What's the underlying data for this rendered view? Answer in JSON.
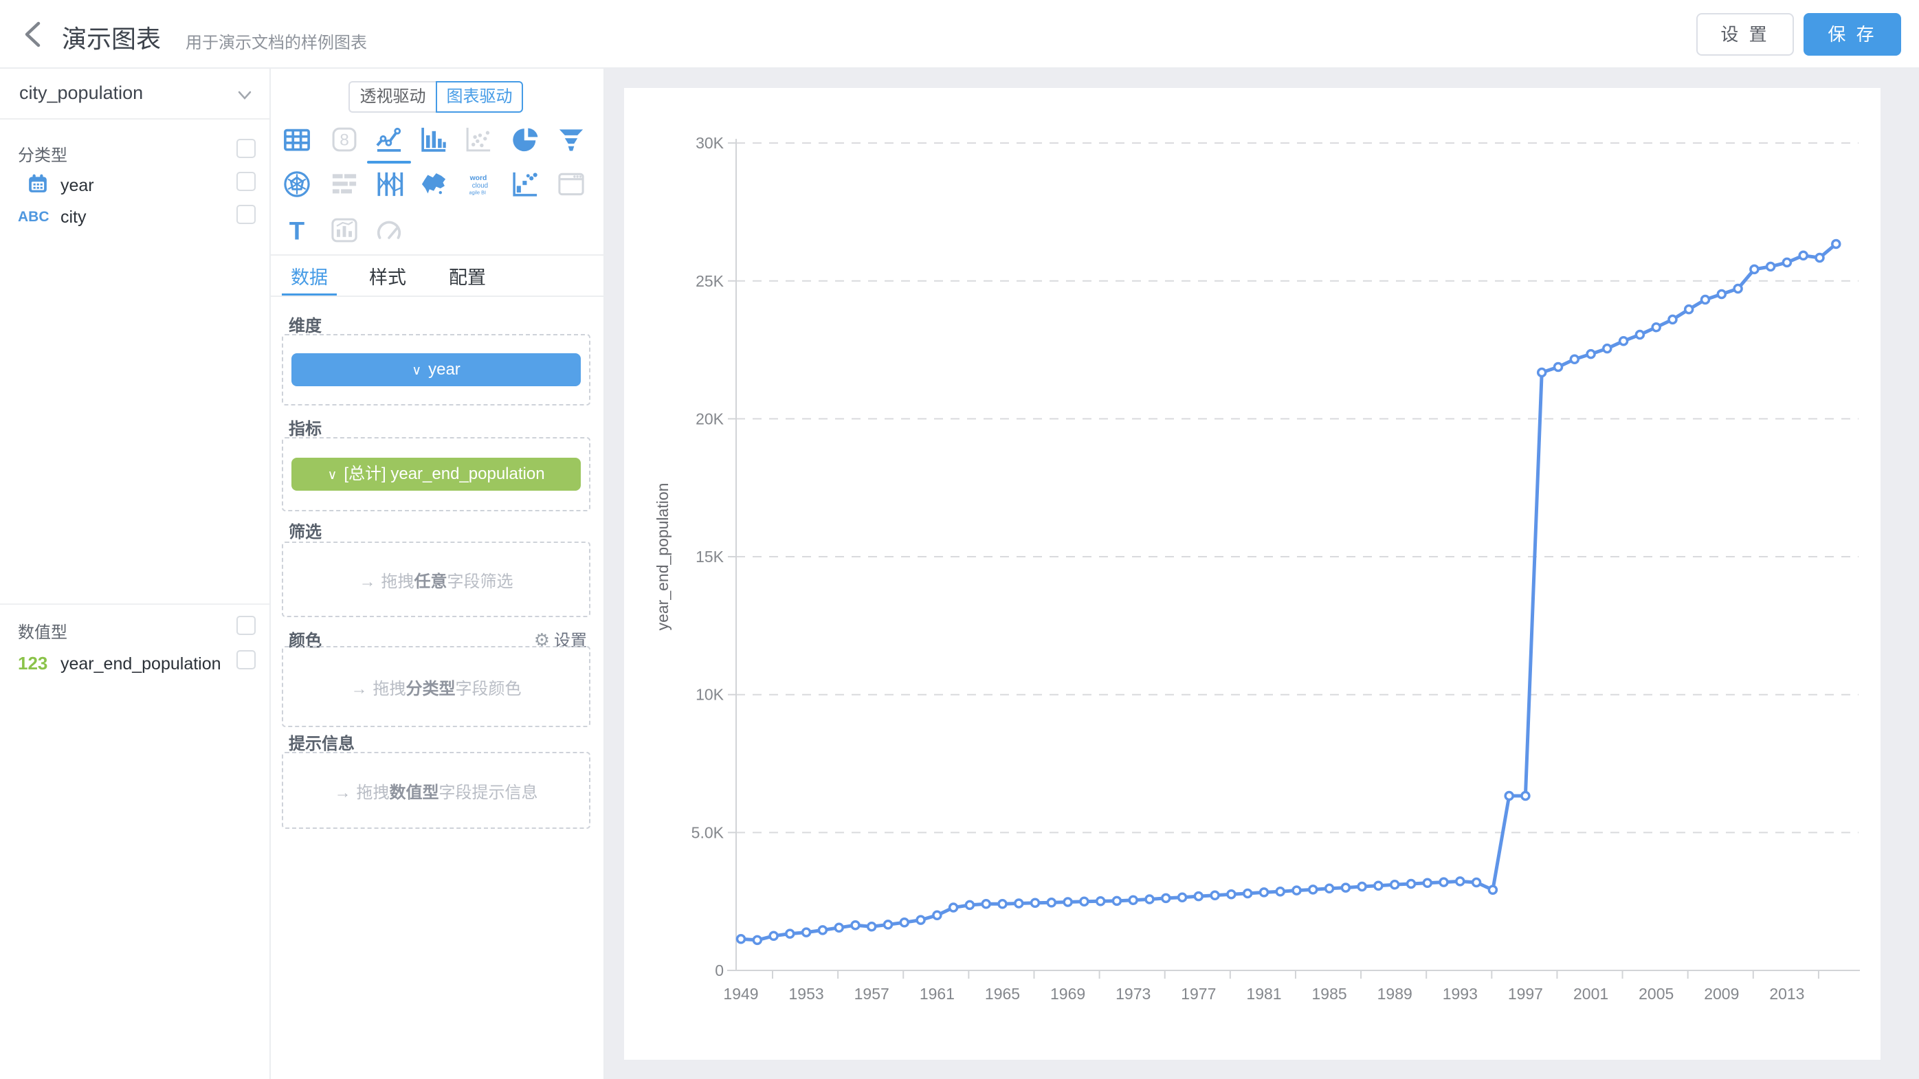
{
  "icons": {
    "chevron_down": "∨",
    "arrow_right": "→",
    "gear": "⚙"
  },
  "header": {
    "title": "演示图表",
    "subtitle": "用于演示文档的样例图表",
    "settings_label": "设 置",
    "save_label": "保 存"
  },
  "sidebar": {
    "dataset": "city_population",
    "category_section": {
      "label": "分类型",
      "fields": [
        {
          "name": "year",
          "icon": "calendar-icon"
        },
        {
          "name": "city",
          "icon": "abc-icon",
          "icon_text": "ABC"
        }
      ]
    },
    "numeric_section": {
      "label": "数值型",
      "fields": [
        {
          "name": "year_end_population",
          "icon": "numeric-123-icon",
          "icon_text": "123"
        }
      ]
    }
  },
  "panel": {
    "mode_toggle": {
      "options": [
        "透视驱动",
        "图表驱动"
      ],
      "active": 1
    },
    "chart_types": [
      {
        "name": "table",
        "state": "normal"
      },
      {
        "name": "indicator",
        "state": "disabled"
      },
      {
        "name": "line",
        "state": "selected"
      },
      {
        "name": "bar",
        "state": "normal"
      },
      {
        "name": "scatter",
        "state": "disabled"
      },
      {
        "name": "pie",
        "state": "normal"
      },
      {
        "name": "funnel",
        "state": "normal"
      },
      {
        "name": "radar",
        "state": "normal"
      },
      {
        "name": "gantt",
        "state": "disabled"
      },
      {
        "name": "parallel",
        "state": "normal"
      },
      {
        "name": "map",
        "state": "normal"
      },
      {
        "name": "word-cloud",
        "state": "normal"
      },
      {
        "name": "quadrant",
        "state": "normal"
      },
      {
        "name": "iframe",
        "state": "disabled"
      },
      {
        "name": "text",
        "state": "normal"
      },
      {
        "name": "mix",
        "state": "disabled"
      },
      {
        "name": "gauge",
        "state": "disabled"
      }
    ],
    "tabs": {
      "items": [
        "数据",
        "样式",
        "配置"
      ],
      "active": 0
    },
    "sections": {
      "dimension": {
        "label": "维度",
        "chip": "year",
        "chip_color": "#55A1E8"
      },
      "metric": {
        "label": "指标",
        "chip": "[总计] year_end_population",
        "chip_color": "#9CC65F"
      },
      "filter": {
        "label": "筛选",
        "parts": [
          "拖拽",
          "任意",
          "字段筛选"
        ]
      },
      "color": {
        "label": "颜色",
        "action": "设置",
        "parts": [
          "拖拽",
          "分类型",
          "字段颜色"
        ]
      },
      "tooltip": {
        "label": "提示信息",
        "parts": [
          "拖拽",
          "数值型",
          "字段提示信息"
        ]
      }
    }
  },
  "chart_data": {
    "type": "line",
    "title": "",
    "xlabel": "",
    "ylabel": "year_end_population",
    "ylim": [
      0,
      30000
    ],
    "grid": "horizontal-dashed",
    "legend_position": "none",
    "line_color": "#5E94E8",
    "x": [
      1949,
      1950,
      1951,
      1952,
      1953,
      1954,
      1955,
      1956,
      1957,
      1958,
      1959,
      1960,
      1961,
      1962,
      1963,
      1964,
      1965,
      1966,
      1967,
      1968,
      1969,
      1970,
      1971,
      1972,
      1973,
      1974,
      1975,
      1976,
      1977,
      1978,
      1979,
      1980,
      1981,
      1982,
      1983,
      1984,
      1985,
      1986,
      1987,
      1988,
      1989,
      1990,
      1991,
      1992,
      1993,
      1994,
      1995,
      1996,
      1997,
      1998,
      1999,
      2000,
      2001,
      2002,
      2003,
      2004,
      2005,
      2006,
      2007,
      2008,
      2009,
      2010,
      2011,
      2012,
      2013,
      2014,
      2015,
      2016
    ],
    "series": [
      {
        "name": "year_end_population",
        "values": [
          1140,
          1100,
          1250,
          1330,
          1380,
          1460,
          1550,
          1640,
          1590,
          1660,
          1740,
          1830,
          2000,
          2280,
          2370,
          2410,
          2410,
          2430,
          2450,
          2460,
          2480,
          2500,
          2510,
          2520,
          2550,
          2580,
          2620,
          2650,
          2690,
          2720,
          2760,
          2790,
          2830,
          2860,
          2900,
          2930,
          2970,
          3000,
          3040,
          3070,
          3110,
          3140,
          3170,
          3200,
          3230,
          3190,
          2920,
          6330,
          6330,
          21680,
          21880,
          22160,
          22350,
          22550,
          22820,
          23050,
          23320,
          23600,
          23970,
          24320,
          24520,
          24720,
          25420,
          25520,
          25670,
          25920,
          25840,
          26340
        ]
      }
    ],
    "yticks": [
      {
        "v": 0,
        "label": "0"
      },
      {
        "v": 5000,
        "label": "5.0K"
      },
      {
        "v": 10000,
        "label": "10K"
      },
      {
        "v": 15000,
        "label": "15K"
      },
      {
        "v": 20000,
        "label": "20K"
      },
      {
        "v": 25000,
        "label": "25K"
      },
      {
        "v": 30000,
        "label": "30K"
      }
    ],
    "xtick_labels": [
      "1949",
      "1953",
      "1957",
      "1961",
      "1965",
      "1969",
      "1973",
      "1977",
      "1981",
      "1985",
      "1989",
      "1993",
      "1997",
      "2001",
      "2005",
      "2009",
      "2013"
    ]
  }
}
